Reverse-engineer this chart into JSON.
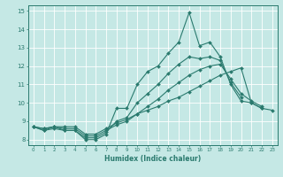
{
  "xlabel": "Humidex (Indice chaleur)",
  "ylabel": "",
  "xlim": [
    -0.5,
    23.5
  ],
  "ylim": [
    7.7,
    15.3
  ],
  "xticks": [
    0,
    1,
    2,
    3,
    4,
    5,
    6,
    7,
    8,
    9,
    10,
    11,
    12,
    13,
    14,
    15,
    16,
    17,
    18,
    19,
    20,
    21,
    22,
    23
  ],
  "yticks": [
    8,
    9,
    10,
    11,
    12,
    13,
    14,
    15
  ],
  "bg_color": "#c5e8e5",
  "line_color": "#2a7a6e",
  "grid_color": "#ffffff",
  "line_width": 0.8,
  "marker": "D",
  "marker_size": 2.0,
  "series": [
    [
      8.7,
      8.5,
      8.6,
      8.5,
      8.5,
      8.0,
      8.0,
      8.3,
      9.7,
      9.7,
      11.0,
      11.7,
      12.0,
      12.7,
      13.3,
      14.9,
      13.1,
      13.3,
      12.5,
      11.0,
      10.1,
      10.0,
      9.7,
      null
    ],
    [
      8.7,
      8.5,
      8.7,
      8.5,
      8.5,
      8.1,
      8.1,
      8.4,
      9.0,
      9.2,
      10.0,
      10.5,
      11.0,
      11.6,
      12.1,
      12.5,
      12.4,
      12.5,
      12.3,
      11.1,
      10.3,
      null,
      null,
      null
    ],
    [
      8.7,
      8.6,
      8.7,
      8.6,
      8.6,
      8.2,
      8.2,
      8.5,
      8.8,
      9.0,
      9.4,
      9.8,
      10.2,
      10.7,
      11.1,
      11.5,
      11.8,
      12.0,
      12.1,
      11.3,
      10.5,
      10.1,
      9.8,
      null
    ],
    [
      8.7,
      8.6,
      8.7,
      8.7,
      8.7,
      8.3,
      8.3,
      8.6,
      8.9,
      9.1,
      9.4,
      9.6,
      9.8,
      10.1,
      10.3,
      10.6,
      10.9,
      11.2,
      11.5,
      11.7,
      11.9,
      10.0,
      9.7,
      9.6
    ]
  ]
}
